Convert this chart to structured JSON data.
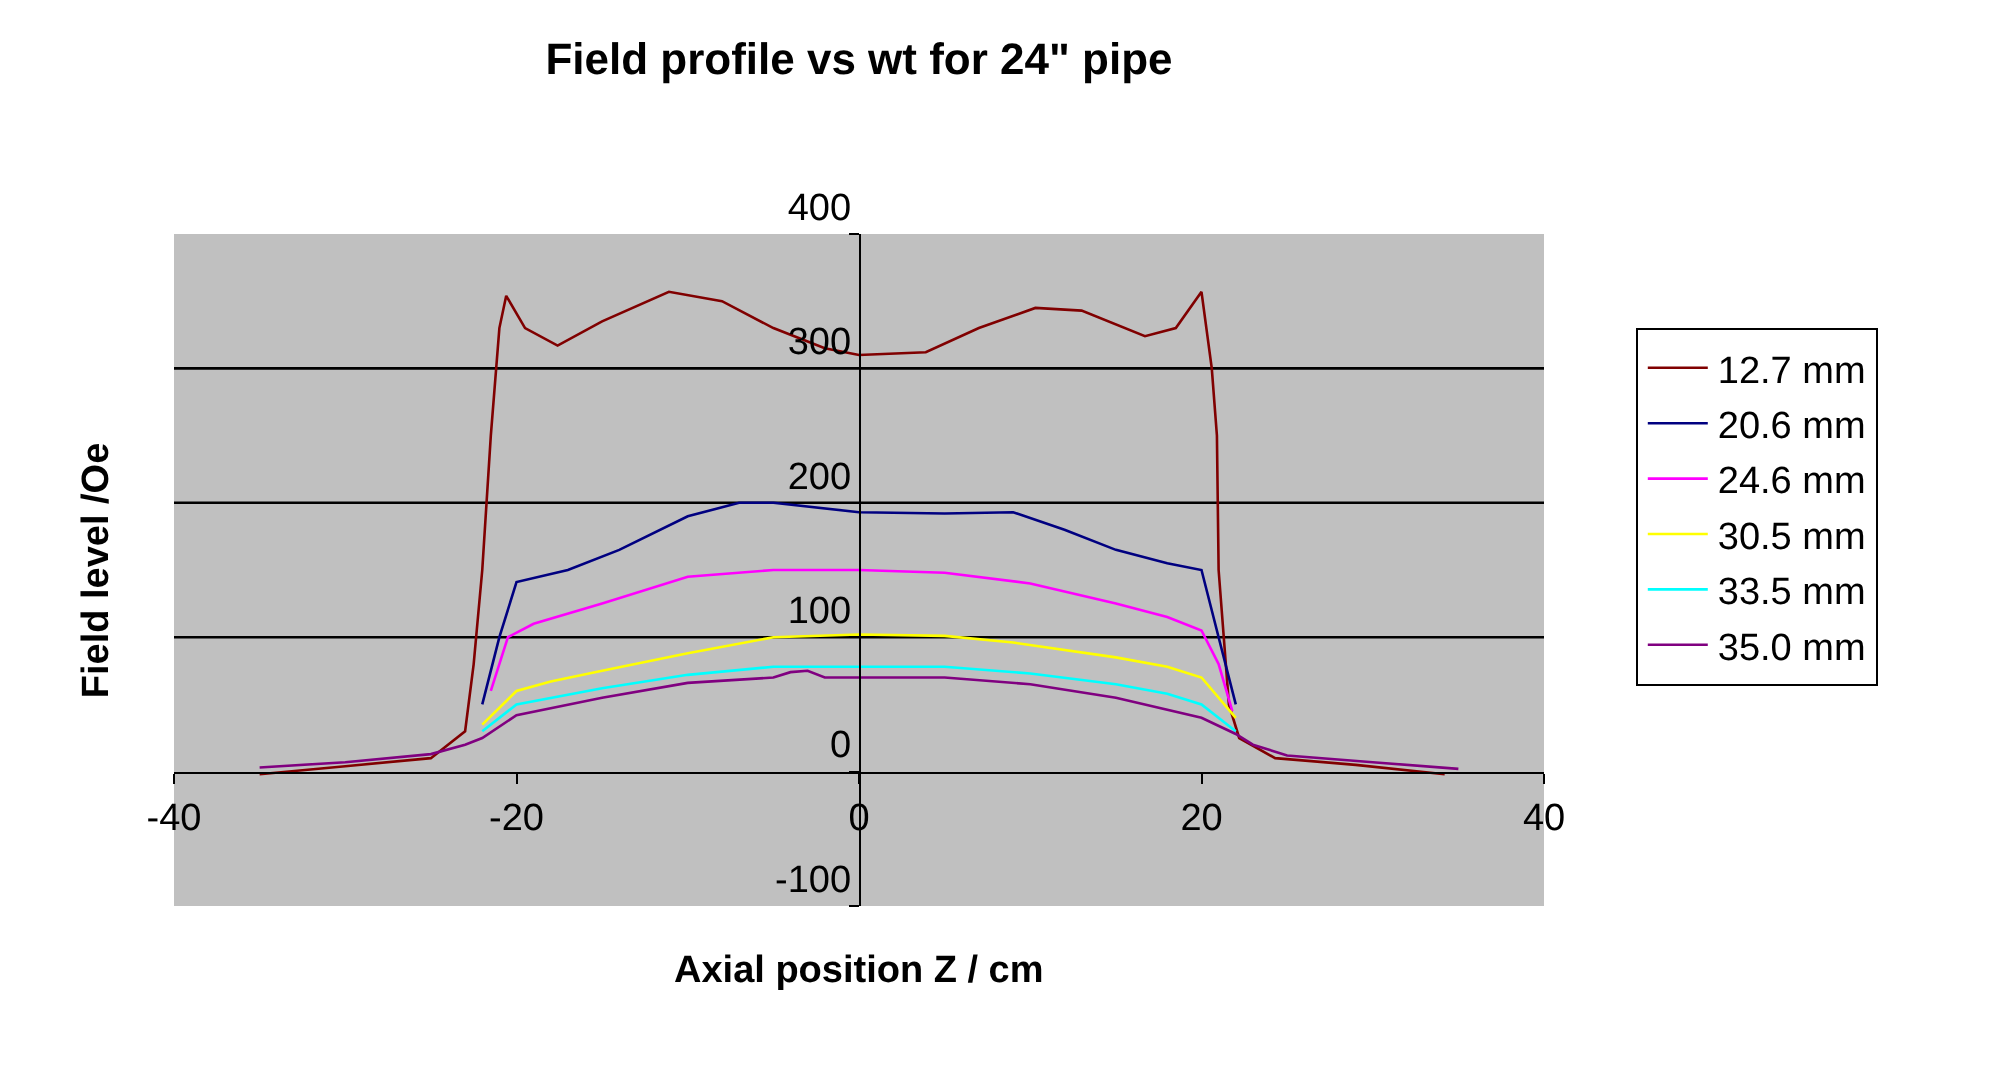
{
  "chart_data": {
    "type": "line",
    "title": "Field profile vs wt for 24\" pipe",
    "xlabel": "Axial position Z / cm",
    "ylabel": "Field level /Oe",
    "xlim": [
      -40,
      40
    ],
    "xticks": [
      -40,
      -20,
      0,
      20,
      40
    ],
    "ylim": [
      -100,
      400
    ],
    "yticks": [
      -100,
      0,
      100,
      200,
      300,
      400
    ],
    "grid": "y",
    "legend": "right",
    "marker": "none",
    "line_style": "solid",
    "series": [
      {
        "name": "12.7 mm",
        "color": "#800000",
        "x": [
          -35,
          -30,
          -25,
          -23,
          -22.5,
          -22,
          -21.5,
          -21,
          -20.6,
          -19.5,
          -17.6,
          -15,
          -11.1,
          -8,
          -5,
          -2,
          0,
          3.9,
          7,
          10.3,
          13,
          16.7,
          18.5,
          20,
          20.6,
          20.9,
          21,
          21.3,
          21.6,
          22.2,
          24.3,
          29,
          34.2
        ],
        "values": [
          -2,
          4,
          10,
          30,
          80,
          150,
          250,
          330,
          354,
          330,
          317,
          335,
          357,
          350,
          330,
          315,
          310,
          312,
          330,
          345,
          343,
          324,
          330,
          357,
          300,
          250,
          150,
          100,
          50,
          25,
          10,
          5,
          -2
        ]
      },
      {
        "name": "20.6 mm",
        "color": "#000080",
        "x": [
          -22,
          -21,
          -20,
          -17,
          -14,
          -10,
          -7,
          -5,
          0,
          5,
          9,
          12,
          15,
          18,
          20,
          21,
          22
        ],
        "values": [
          50,
          100,
          141,
          150,
          165,
          190,
          200,
          200,
          193,
          192,
          193,
          180,
          165,
          155,
          150,
          100,
          50
        ]
      },
      {
        "name": "24.6 mm",
        "color": "#ff00ff",
        "x": [
          -21.5,
          -20.5,
          -19,
          -15,
          -10,
          -5,
          0,
          5,
          10,
          15,
          18,
          20,
          21,
          21.8
        ],
        "values": [
          60,
          100,
          110,
          125,
          145,
          150,
          150,
          148,
          140,
          125,
          115,
          105,
          80,
          45
        ]
      },
      {
        "name": "30.5 mm",
        "color": "#ffff00",
        "x": [
          -22,
          -20,
          -18,
          -15,
          -10,
          -5,
          0,
          5,
          9,
          15,
          18,
          20,
          22
        ],
        "values": [
          35,
          60,
          67,
          75,
          88,
          100,
          102,
          101,
          96,
          85,
          78,
          70,
          40
        ]
      },
      {
        "name": "33.5 mm",
        "color": "#00ffff",
        "x": [
          -22,
          -20,
          -15,
          -10,
          -5,
          0,
          5,
          10,
          15,
          18,
          20,
          22
        ],
        "values": [
          30,
          50,
          62,
          72,
          78,
          78,
          78,
          73,
          65,
          58,
          50,
          30
        ]
      },
      {
        "name": "35.0 mm",
        "color": "#800080",
        "x": [
          -35,
          -30,
          -25,
          -23,
          -22,
          -20,
          -15,
          -10,
          -5,
          -4,
          -3,
          -2,
          0,
          5,
          10,
          15,
          20,
          22,
          23,
          25,
          30,
          35
        ],
        "values": [
          3,
          7,
          13,
          20,
          25,
          42,
          55,
          66,
          70,
          74,
          75,
          70,
          70,
          70,
          65,
          55,
          40,
          28,
          20,
          12,
          7,
          2
        ]
      }
    ]
  }
}
